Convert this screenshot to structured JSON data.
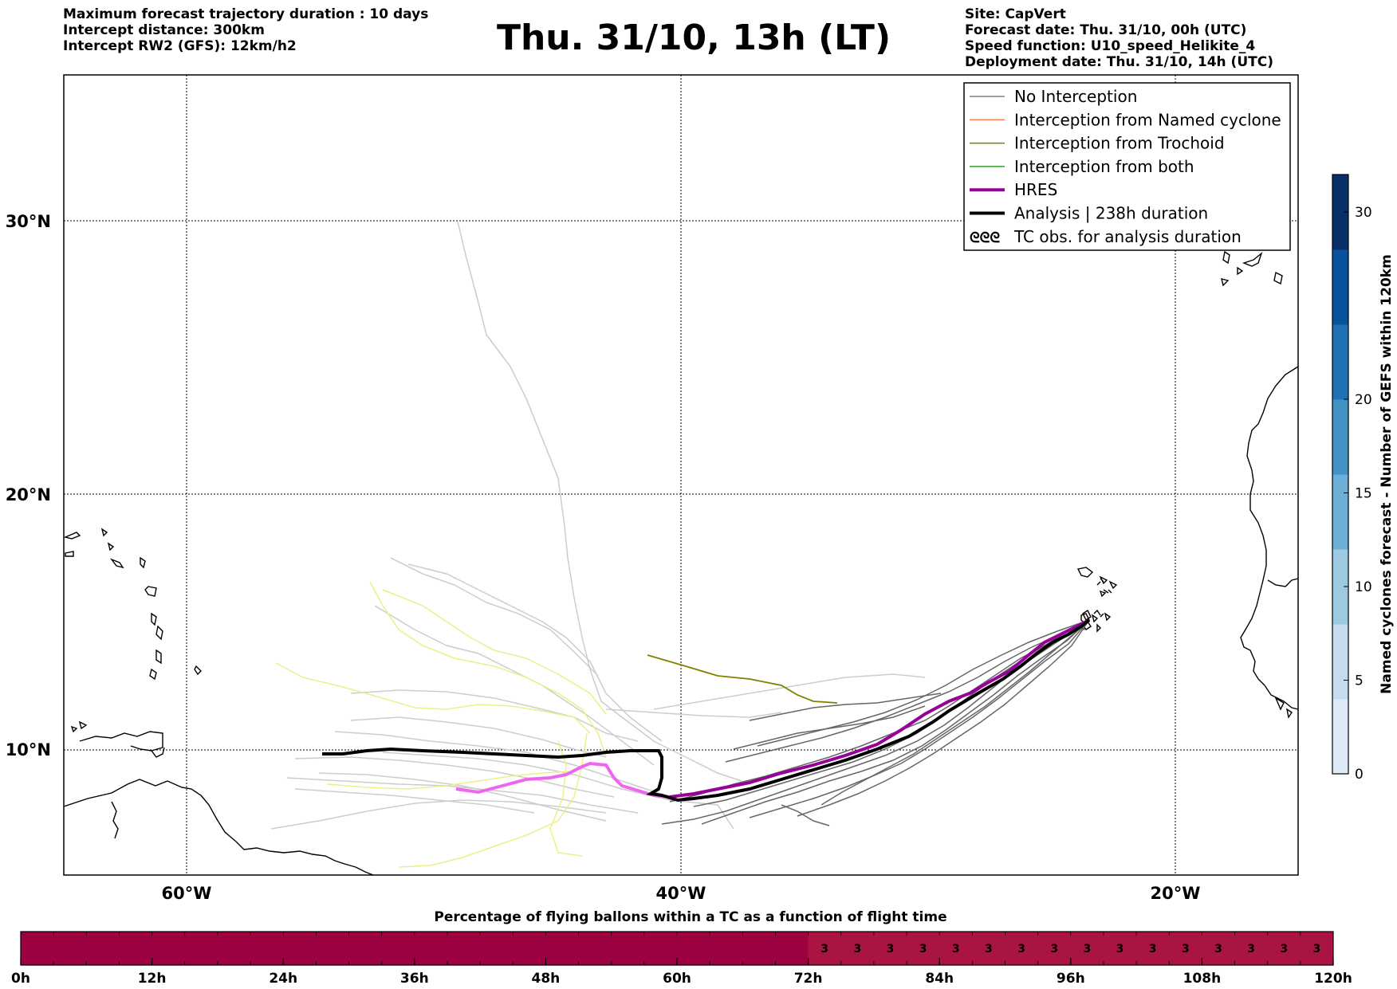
{
  "header": {
    "left_lines": [
      "Maximum forecast trajectory duration : 10 days",
      "Intercept distance: 300km",
      "Intercept RW2 (GFS):  12km/h2"
    ],
    "title": "Thu. 31/10, 13h (LT)",
    "right_lines": [
      "Site: CapVert",
      "Forecast date: Thu. 31/10, 00h (UTC)",
      "Speed function: U10_speed_Helikite_4",
      "Deployment date: Thu. 31/10, 14h (UTC)"
    ]
  },
  "map": {
    "lat_labels": [
      "30°N",
      "20°N",
      "10°N"
    ],
    "lon_labels": [
      "60°W",
      "40°W",
      "20°W"
    ],
    "colors": {
      "no_interception": "#cccccc",
      "no_interception_dark": "#666666",
      "named_cyclone": "#ff7f50",
      "trochoid": "#808000",
      "both": "#2ca02c",
      "hres": "#990099",
      "hres_light": "#ee66ee",
      "analysis": "#000000",
      "yellow_tracks": "#eeee88"
    }
  },
  "legend": {
    "items": [
      {
        "label": "No Interception",
        "color": "#808080",
        "icon": "thin-line"
      },
      {
        "label": "Interception from Named cyclone",
        "color": "#ff7f50",
        "icon": "thin-line"
      },
      {
        "label": "Interception from Trochoid",
        "color": "#808000",
        "icon": "thin-line"
      },
      {
        "label": "Interception from both",
        "color": "#2ca02c",
        "icon": "thin-line"
      },
      {
        "label": "HRES",
        "color": "#990099",
        "icon": "thick-line"
      },
      {
        "label": "Analysis | 238h duration",
        "color": "#000000",
        "icon": "thick-line"
      },
      {
        "label": "TC obs. for analysis duration",
        "color": "#000000",
        "icon": "cyclone-symbols",
        "symbol": "ᘓᘓᘓ"
      }
    ]
  },
  "colorbar": {
    "label": "Named cyclones forecast - Number of GEFS within 120km",
    "ticks": [
      "0",
      "5",
      "10",
      "15",
      "20",
      "30"
    ],
    "colors": [
      "#deebf7",
      "#c6dbef",
      "#9ecae1",
      "#6baed6",
      "#4292c6",
      "#2171b5",
      "#08519c",
      "#08306b"
    ]
  },
  "timeline": {
    "title": "Percentage of flying ballons within a TC as a function of flight time",
    "tick_labels": [
      "0h",
      "12h",
      "24h",
      "36h",
      "48h",
      "60h",
      "72h",
      "84h",
      "96h",
      "108h",
      "120h"
    ],
    "base_color": "#9e0142",
    "cell_color": "#a91443",
    "cell_values": [
      "3",
      "3",
      "3",
      "3",
      "3",
      "3",
      "3",
      "3",
      "3",
      "3",
      "3",
      "3",
      "3",
      "3",
      "3",
      "3"
    ]
  }
}
